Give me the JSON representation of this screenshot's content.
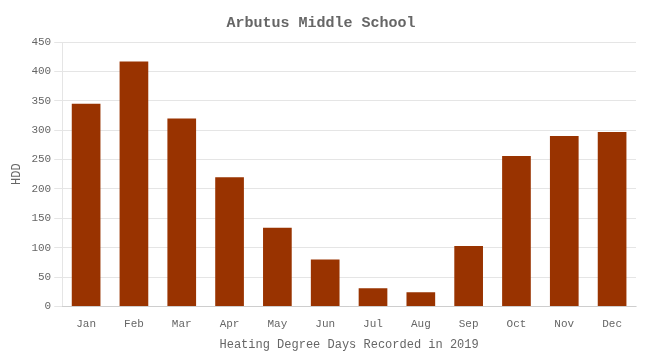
{
  "chart_data": {
    "type": "bar",
    "title": "Arbutus Middle School",
    "xlabel": "Heating Degree Days Recorded in 2019",
    "ylabel": "HDD",
    "categories": [
      "Jan",
      "Feb",
      "Mar",
      "Apr",
      "May",
      "Jun",
      "Jul",
      "Aug",
      "Sep",
      "Oct",
      "Nov",
      "Dec"
    ],
    "values": [
      345,
      417,
      320,
      220,
      134,
      80,
      31,
      24,
      103,
      256,
      290,
      297
    ],
    "color": "#993300",
    "ylim": [
      0,
      450
    ],
    "yticks": [
      0,
      50,
      100,
      150,
      200,
      250,
      300,
      350,
      400,
      450
    ],
    "grid": true
  }
}
